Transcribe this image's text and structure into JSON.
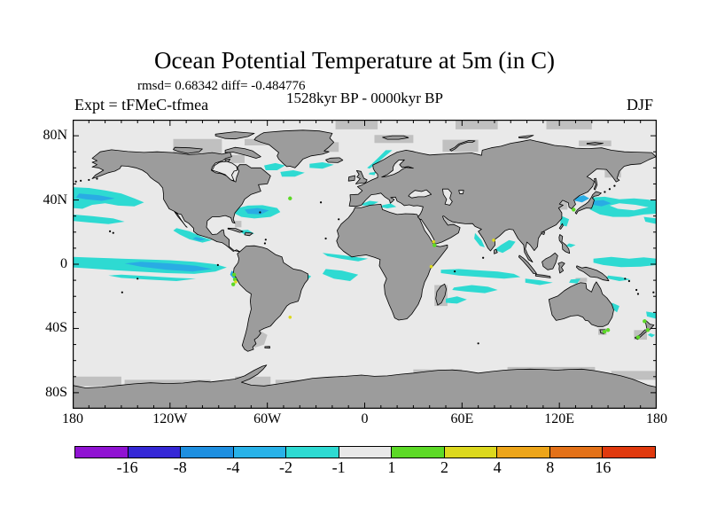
{
  "header": {
    "title": "Ocean Potential Temperature at 5m (in C)",
    "stats_line": "rmsd= 0.68342 diff= -0.484776",
    "period_line": "1528kyr BP - 0000kyr BP",
    "experiment_label": "Expt = tFMeC-tfmea",
    "season_label": "DJF"
  },
  "axes": {
    "x_tick_labels": [
      "180",
      "120W",
      "60W",
      "0",
      "60E",
      "120E",
      "180"
    ],
    "x_tick_lons": [
      -180,
      -120,
      -60,
      0,
      60,
      120,
      180
    ],
    "y_tick_labels": [
      "80N",
      "40N",
      "0",
      "40S",
      "80S"
    ],
    "y_tick_lats": [
      80,
      40,
      0,
      -40,
      -80
    ]
  },
  "colorbar": {
    "tick_labels": [
      "-16",
      "-8",
      "-4",
      "-2",
      "-1",
      "1",
      "2",
      "4",
      "8",
      "16"
    ],
    "levels": [
      -16,
      -8,
      -4,
      -2,
      -1,
      1,
      2,
      4,
      8,
      16
    ],
    "colors": [
      "#9013D2",
      "#3528D6",
      "#1E8FE0",
      "#29B2E8",
      "#2EDAD2",
      "#E8E8E8",
      "#5CD926",
      "#DCD81E",
      "#EDA51A",
      "#E37118",
      "#E0390E"
    ]
  },
  "palette": {
    "ocean": "#E9E9E9",
    "land": "#9C9C9C",
    "shelf": "#C0C0C0",
    "coastline": "#000000",
    "anomaly_cyan": "#2EDAD2",
    "anomaly_blue": "#29ACE4",
    "anomaly_green": "#5CD926",
    "anomaly_yellow": "#DCD81E"
  },
  "chart_data": {
    "type": "heatmap",
    "title": "Ocean Potential Temperature at 5m (in C)",
    "subtitle": "1528kyr BP - 0000kyr BP",
    "statistics": {
      "rmsd": 0.68342,
      "diff": -0.484776
    },
    "experiment": "tFMeC-tfmea",
    "season": "DJF",
    "units": "C",
    "depth": "5m",
    "projection": "equirectangular world map",
    "lon_range": [
      -180,
      180
    ],
    "lat_range": [
      -90,
      90
    ],
    "x_ticks": [
      "180",
      "120W",
      "60W",
      "0",
      "60E",
      "120E",
      "180"
    ],
    "y_ticks": [
      "80N",
      "40N",
      "0",
      "40S",
      "80S"
    ],
    "colorbar_levels": [
      -16,
      -8,
      -4,
      -2,
      -1,
      1,
      2,
      4,
      8,
      16
    ],
    "colorbar_colors": [
      "#9013D2",
      "#3528D6",
      "#1E8FE0",
      "#29B2E8",
      "#2EDAD2",
      "#E8E8E8",
      "#5CD926",
      "#DCD81E",
      "#EDA51A",
      "#E37118",
      "#E0390E"
    ],
    "legend_position": "bottom",
    "grid": false,
    "dominant_value_band": "-2 to -1 C (cyan) cooling patches over ~1 C background (light gray)",
    "anomaly_regions": [
      {
        "region": "Northeast Pacific 25-48N near 180-135W",
        "value_band": "-2 to -1, core -4 to -2"
      },
      {
        "region": "Eastern equatorial Pacific 180-85W",
        "value_band": "-2 to -1, core -4 to -2"
      },
      {
        "region": "Pacific off Mexico/Central America 13-23N",
        "value_band": "-2 to -1"
      },
      {
        "region": "Gulf Stream / western North Atlantic 28-37N",
        "value_band": "-2 to -1, core -4 to -2"
      },
      {
        "region": "Subpolar North Atlantic, Labrador Sea, south of Iceland, Norway coast",
        "value_band": "-2 to -1"
      },
      {
        "region": "Mediterranean Sea",
        "value_band": "-2 to -1"
      },
      {
        "region": "Equatorial Atlantic / Gulf of Guinea",
        "value_band": "-2 to -1"
      },
      {
        "region": "Indian Ocean bands 4-20S and coasts of India",
        "value_band": "-2 to -1"
      },
      {
        "region": "Kuroshio extension / western North Pacific 25-42N",
        "value_band": "-2 to -1, Sea of Japan core -4 to -2"
      },
      {
        "region": "Equatorial west Pacific and Coral/Tasman Sea streaks",
        "value_band": "-2 to -1"
      },
      {
        "region": "Scattered coastal specks (Newfoundland, Peru coast, New Zealand, Tasmania)",
        "value_band": "+1 to +4"
      }
    ]
  }
}
